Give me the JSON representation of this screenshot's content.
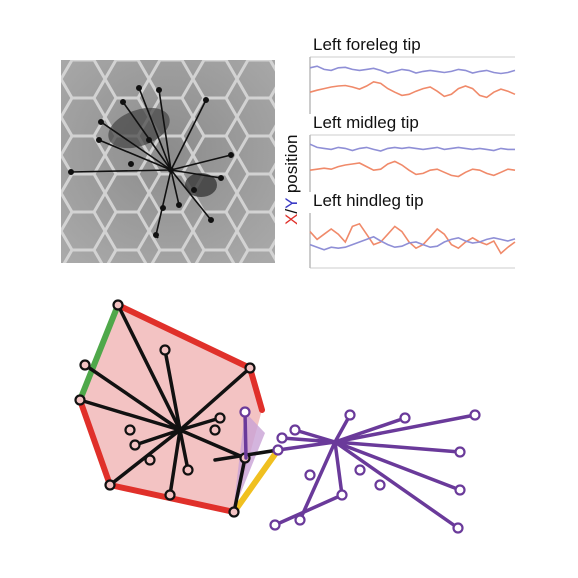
{
  "traces": {
    "titles": [
      "Left foreleg tip",
      "Left midleg tip",
      "Left hindleg tip"
    ],
    "ylabel": {
      "x_part": "X",
      "slash": "/",
      "y_part": "Y",
      "rest": " position"
    },
    "colors": {
      "x": "#f08a6a",
      "y": "#8f8fd6",
      "axis": "#999999"
    },
    "series": [
      {
        "x": [
          0.62,
          0.58,
          0.55,
          0.52,
          0.5,
          0.49,
          0.52,
          0.56,
          0.5,
          0.42,
          0.45,
          0.55,
          0.62,
          0.68,
          0.66,
          0.6,
          0.55,
          0.52,
          0.6,
          0.7,
          0.66,
          0.55,
          0.5,
          0.55,
          0.68,
          0.72,
          0.62,
          0.56,
          0.6,
          0.66
        ],
        "y": [
          0.15,
          0.12,
          0.18,
          0.2,
          0.15,
          0.14,
          0.18,
          0.2,
          0.18,
          0.16,
          0.2,
          0.25,
          0.22,
          0.18,
          0.2,
          0.25,
          0.22,
          0.2,
          0.22,
          0.24,
          0.22,
          0.18,
          0.2,
          0.25,
          0.22,
          0.2,
          0.24,
          0.26,
          0.24,
          0.2
        ]
      },
      {
        "x": [
          0.62,
          0.6,
          0.58,
          0.6,
          0.55,
          0.52,
          0.5,
          0.48,
          0.55,
          0.62,
          0.6,
          0.5,
          0.45,
          0.52,
          0.62,
          0.7,
          0.68,
          0.62,
          0.6,
          0.66,
          0.72,
          0.74,
          0.66,
          0.6,
          0.62,
          0.68,
          0.72,
          0.66,
          0.6,
          0.62
        ],
        "y": [
          0.12,
          0.18,
          0.2,
          0.22,
          0.18,
          0.2,
          0.24,
          0.2,
          0.18,
          0.22,
          0.25,
          0.2,
          0.18,
          0.2,
          0.18,
          0.2,
          0.22,
          0.2,
          0.18,
          0.22,
          0.2,
          0.18,
          0.2,
          0.22,
          0.2,
          0.22,
          0.24,
          0.2,
          0.22,
          0.22
        ]
      },
      {
        "x": [
          0.3,
          0.45,
          0.35,
          0.25,
          0.35,
          0.5,
          0.2,
          0.15,
          0.35,
          0.55,
          0.5,
          0.35,
          0.2,
          0.3,
          0.5,
          0.62,
          0.55,
          0.4,
          0.25,
          0.35,
          0.55,
          0.62,
          0.5,
          0.42,
          0.5,
          0.55,
          0.48,
          0.72,
          0.6,
          0.5
        ],
        "y": [
          0.55,
          0.6,
          0.65,
          0.6,
          0.62,
          0.6,
          0.55,
          0.5,
          0.45,
          0.4,
          0.48,
          0.55,
          0.6,
          0.58,
          0.52,
          0.5,
          0.55,
          0.6,
          0.58,
          0.5,
          0.45,
          0.42,
          0.48,
          0.52,
          0.5,
          0.45,
          0.42,
          0.45,
          0.48,
          0.44
        ]
      }
    ]
  }
}
